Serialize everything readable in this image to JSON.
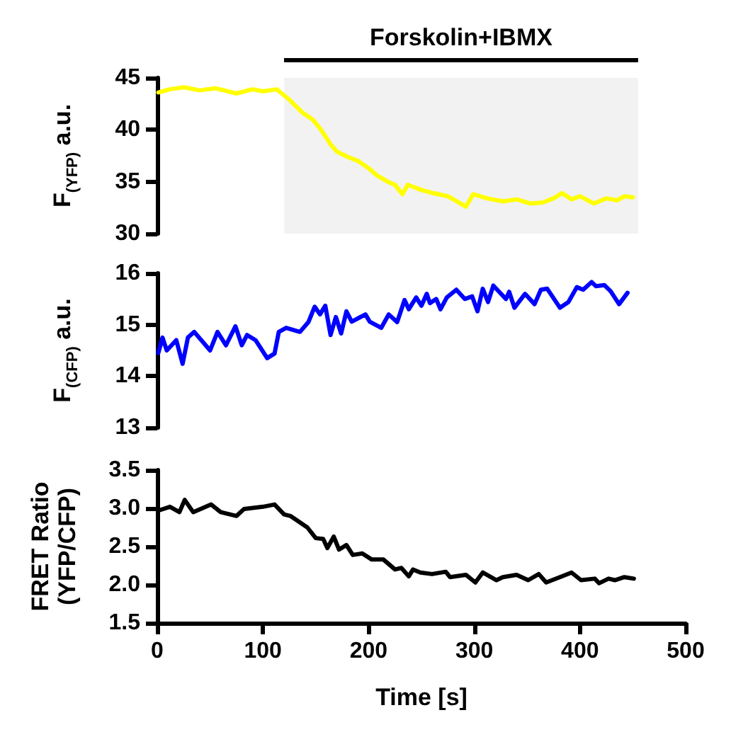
{
  "chart_data": [
    {
      "type": "line",
      "ylabel": "F$_{(YFP)}$ a.u.",
      "color": "#ffff00",
      "xlim": [
        0,
        500
      ],
      "ylim": [
        30,
        45
      ],
      "yticks": [
        30,
        35,
        40,
        45
      ],
      "tick_labels": "y",
      "grid": false,
      "marker": "none",
      "line_style": "solid",
      "bands": [
        {
          "axis": "x",
          "from": 120,
          "to": 455,
          "label": "Forskolin+IBMX",
          "color": "#000000"
        }
      ],
      "x": [
        1,
        12,
        25,
        40,
        55,
        75,
        90,
        100,
        113,
        125,
        138,
        147,
        155,
        164,
        170,
        180,
        190,
        200,
        208,
        218,
        225,
        232,
        237,
        250,
        261,
        275,
        292,
        299,
        312,
        327,
        340,
        353,
        365,
        375,
        383,
        392,
        400,
        413,
        425,
        435,
        442,
        450
      ],
      "values": [
        43.6,
        43.9,
        44.1,
        43.8,
        44.0,
        43.5,
        43.9,
        43.7,
        43.9,
        42.9,
        41.6,
        41.0,
        40.0,
        38.6,
        37.9,
        37.4,
        37.0,
        36.3,
        35.6,
        35.0,
        34.7,
        33.8,
        34.7,
        34.2,
        33.9,
        33.6,
        32.6,
        33.8,
        33.4,
        33.1,
        33.3,
        32.9,
        33.0,
        33.4,
        33.9,
        33.3,
        33.6,
        32.9,
        33.4,
        33.2,
        33.6,
        33.5
      ]
    },
    {
      "type": "line",
      "ylabel": "F$_{(CFP)}$ a.u.",
      "color": "#0000ff",
      "xlim": [
        0,
        500
      ],
      "ylim": [
        13,
        16
      ],
      "yticks": [
        13,
        14,
        15,
        16
      ],
      "tick_labels": "y",
      "grid": false,
      "marker": "none",
      "line_style": "solid",
      "x": [
        1,
        5,
        9,
        18,
        24,
        29,
        35,
        50,
        57,
        65,
        74,
        80,
        85,
        93,
        104,
        111,
        115,
        122,
        135,
        143,
        149,
        154,
        159,
        164,
        169,
        174,
        179,
        184,
        197,
        201,
        212,
        219,
        227,
        234,
        238,
        245,
        250,
        255,
        258,
        264,
        268,
        274,
        283,
        291,
        298,
        303,
        308,
        313,
        318,
        330,
        333,
        338,
        348,
        357,
        363,
        369,
        381,
        389,
        397,
        403,
        411,
        415,
        423,
        429,
        437,
        445
      ],
      "values": [
        14.45,
        14.75,
        14.5,
        14.7,
        14.24,
        14.75,
        14.86,
        14.5,
        14.86,
        14.6,
        14.97,
        14.6,
        14.8,
        14.7,
        14.35,
        14.44,
        14.86,
        14.94,
        14.86,
        15.05,
        15.35,
        15.2,
        15.37,
        14.8,
        15.15,
        14.83,
        15.26,
        15.06,
        15.2,
        15.06,
        14.94,
        15.2,
        15.05,
        15.48,
        15.3,
        15.53,
        15.37,
        15.6,
        15.42,
        15.5,
        15.3,
        15.53,
        15.68,
        15.5,
        15.55,
        15.26,
        15.7,
        15.44,
        15.76,
        15.5,
        15.64,
        15.33,
        15.6,
        15.4,
        15.68,
        15.7,
        15.33,
        15.44,
        15.73,
        15.68,
        15.83,
        15.75,
        15.77,
        15.65,
        15.4,
        15.62
      ]
    },
    {
      "type": "line",
      "ylabel": "FRET Ratio\n(YFP/CFP)",
      "xlabel": "Time [s]",
      "color": "#000000",
      "xlim": [
        0,
        500
      ],
      "xticks": [
        0,
        100,
        200,
        300,
        400,
        500
      ],
      "ylim": [
        1.5,
        3.5
      ],
      "yticks": [
        1.5,
        {
          "value": 2,
          "label": "2.0"
        },
        2.5,
        {
          "value": 3,
          "label": "3.0"
        },
        3.5
      ],
      "grid": false,
      "marker": "none",
      "line_style": "solid",
      "x": [
        1,
        12,
        21,
        26,
        34,
        51,
        60,
        75,
        82,
        100,
        111,
        120,
        126,
        142,
        150,
        157,
        161,
        167,
        172,
        179,
        185,
        194,
        203,
        214,
        225,
        231,
        238,
        242,
        249,
        260,
        273,
        277,
        292,
        301,
        308,
        321,
        327,
        340,
        351,
        361,
        368,
        381,
        392,
        401,
        414,
        418,
        427,
        433,
        442,
        451
      ],
      "values": [
        2.97,
        3.02,
        2.95,
        3.11,
        2.95,
        3.05,
        2.95,
        2.9,
        2.99,
        3.02,
        3.05,
        2.92,
        2.9,
        2.75,
        2.61,
        2.6,
        2.48,
        2.63,
        2.46,
        2.52,
        2.39,
        2.41,
        2.33,
        2.33,
        2.2,
        2.22,
        2.11,
        2.2,
        2.16,
        2.14,
        2.17,
        2.1,
        2.13,
        2.03,
        2.16,
        2.06,
        2.1,
        2.13,
        2.06,
        2.14,
        2.03,
        2.1,
        2.16,
        2.06,
        2.08,
        2.02,
        2.08,
        2.06,
        2.1,
        2.08
      ]
    }
  ]
}
